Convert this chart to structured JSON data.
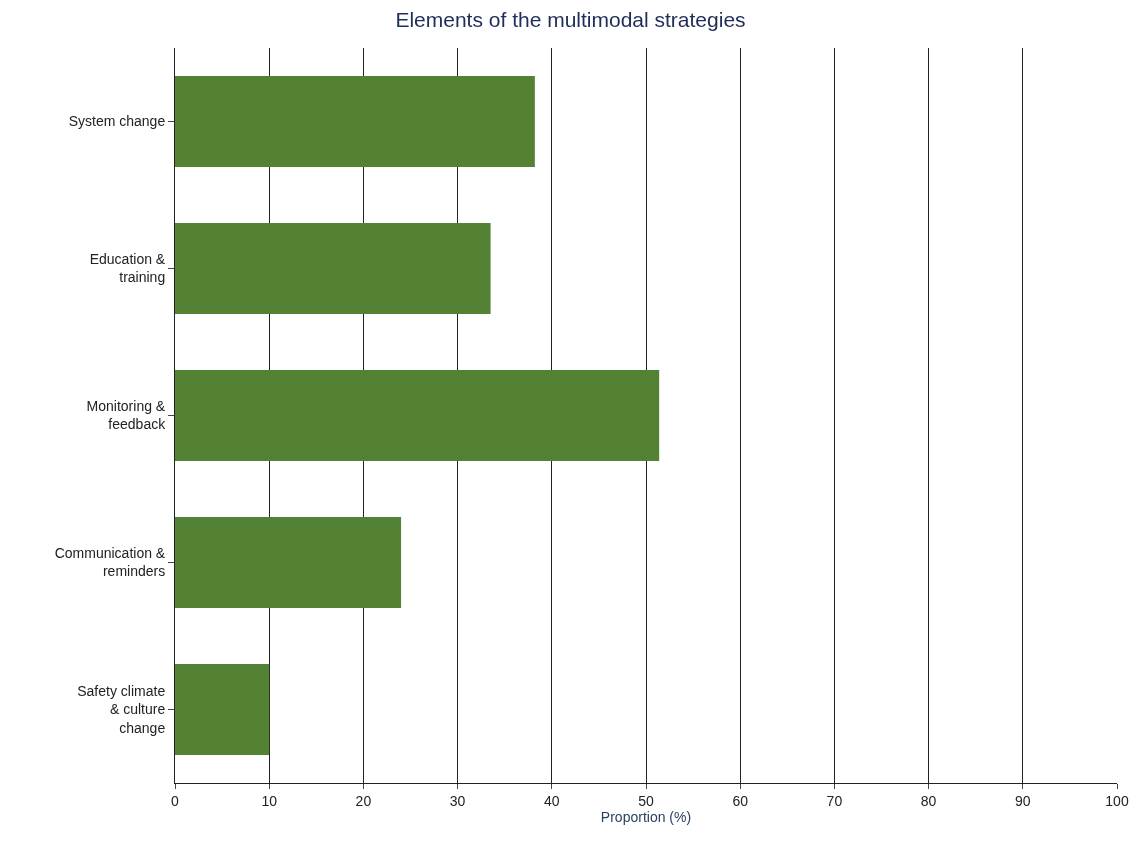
{
  "chart_data": {
    "type": "bar",
    "orientation": "horizontal",
    "title": "Elements of the multimodal strategies",
    "xlabel": "Proportion (%)",
    "categories": [
      "System change",
      "Education &\ntraining",
      "Monitoring &\nfeedback",
      "Communication &\nreminders",
      "Safety climate\n& culture\nchange"
    ],
    "values": [
      38.2,
      33.5,
      51.4,
      24.0,
      10.0
    ],
    "color": "#548235",
    "xlim": [
      0,
      100
    ],
    "xticks": [
      0,
      10,
      20,
      30,
      40,
      50,
      60,
      70,
      80,
      90,
      100
    ],
    "grid": "x"
  }
}
